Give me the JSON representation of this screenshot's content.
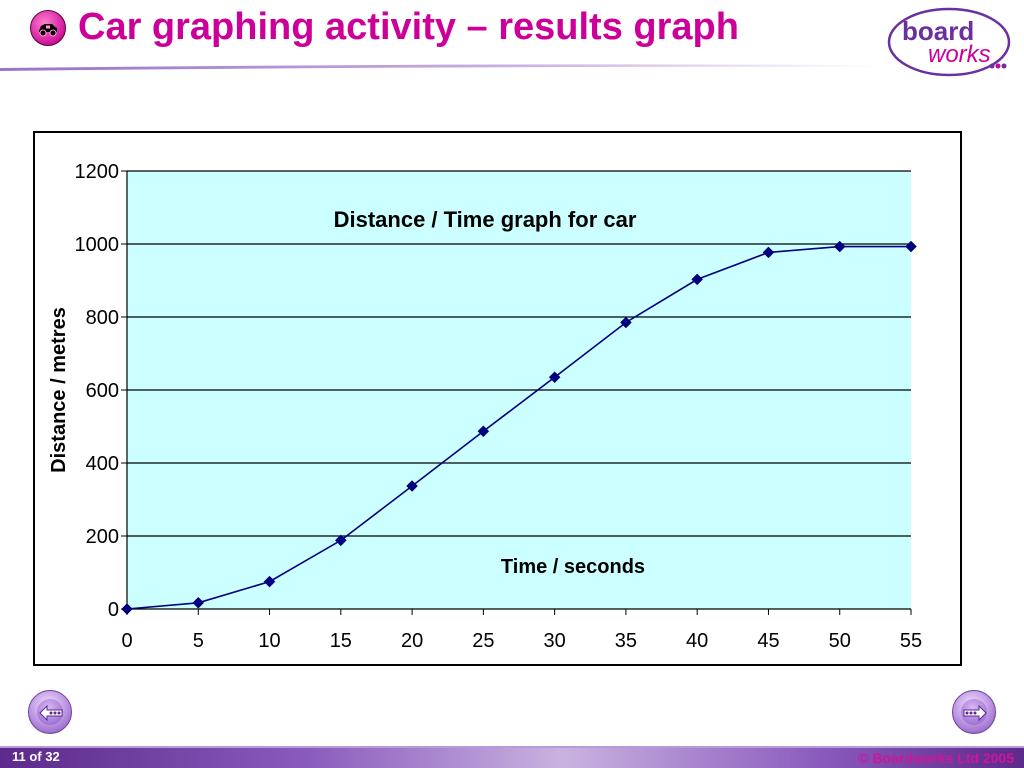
{
  "header": {
    "title": "Car graphing activity – results graph",
    "icon": "car-icon",
    "logo": {
      "line1": "board",
      "line2": "works",
      "colors": [
        "#6b2fa0",
        "#cc0099"
      ]
    }
  },
  "footer": {
    "page_indicator": "11 of 32",
    "copyright": "© Boardworks Ltd 2005"
  },
  "nav": {
    "prev_icon": "back-arrow-icon",
    "next_icon": "forward-arrow-icon"
  },
  "colors": {
    "title": "#cc0099",
    "plot_background": "#ccffff",
    "series_line": "#000080",
    "footer_bar": "#5b2a8a"
  },
  "chart_data": {
    "type": "line",
    "title": "Distance / Time graph for car",
    "xlabel": "Time / seconds",
    "ylabel": "Distance / metres",
    "xlim": [
      0,
      55
    ],
    "ylim": [
      0,
      1200
    ],
    "xticks": [
      0,
      5,
      10,
      15,
      20,
      25,
      30,
      35,
      40,
      45,
      50,
      55
    ],
    "yticks": [
      0,
      200,
      400,
      600,
      800,
      1000,
      1200
    ],
    "grid": "horizontal",
    "legend": "none",
    "series": [
      {
        "x": [
          0,
          5,
          10,
          15,
          20,
          25,
          30,
          35,
          40,
          45,
          50,
          55
        ],
        "y": [
          0,
          17,
          75,
          188,
          337,
          487,
          635,
          785,
          903,
          977,
          993,
          993
        ],
        "marker": "diamond"
      }
    ]
  }
}
